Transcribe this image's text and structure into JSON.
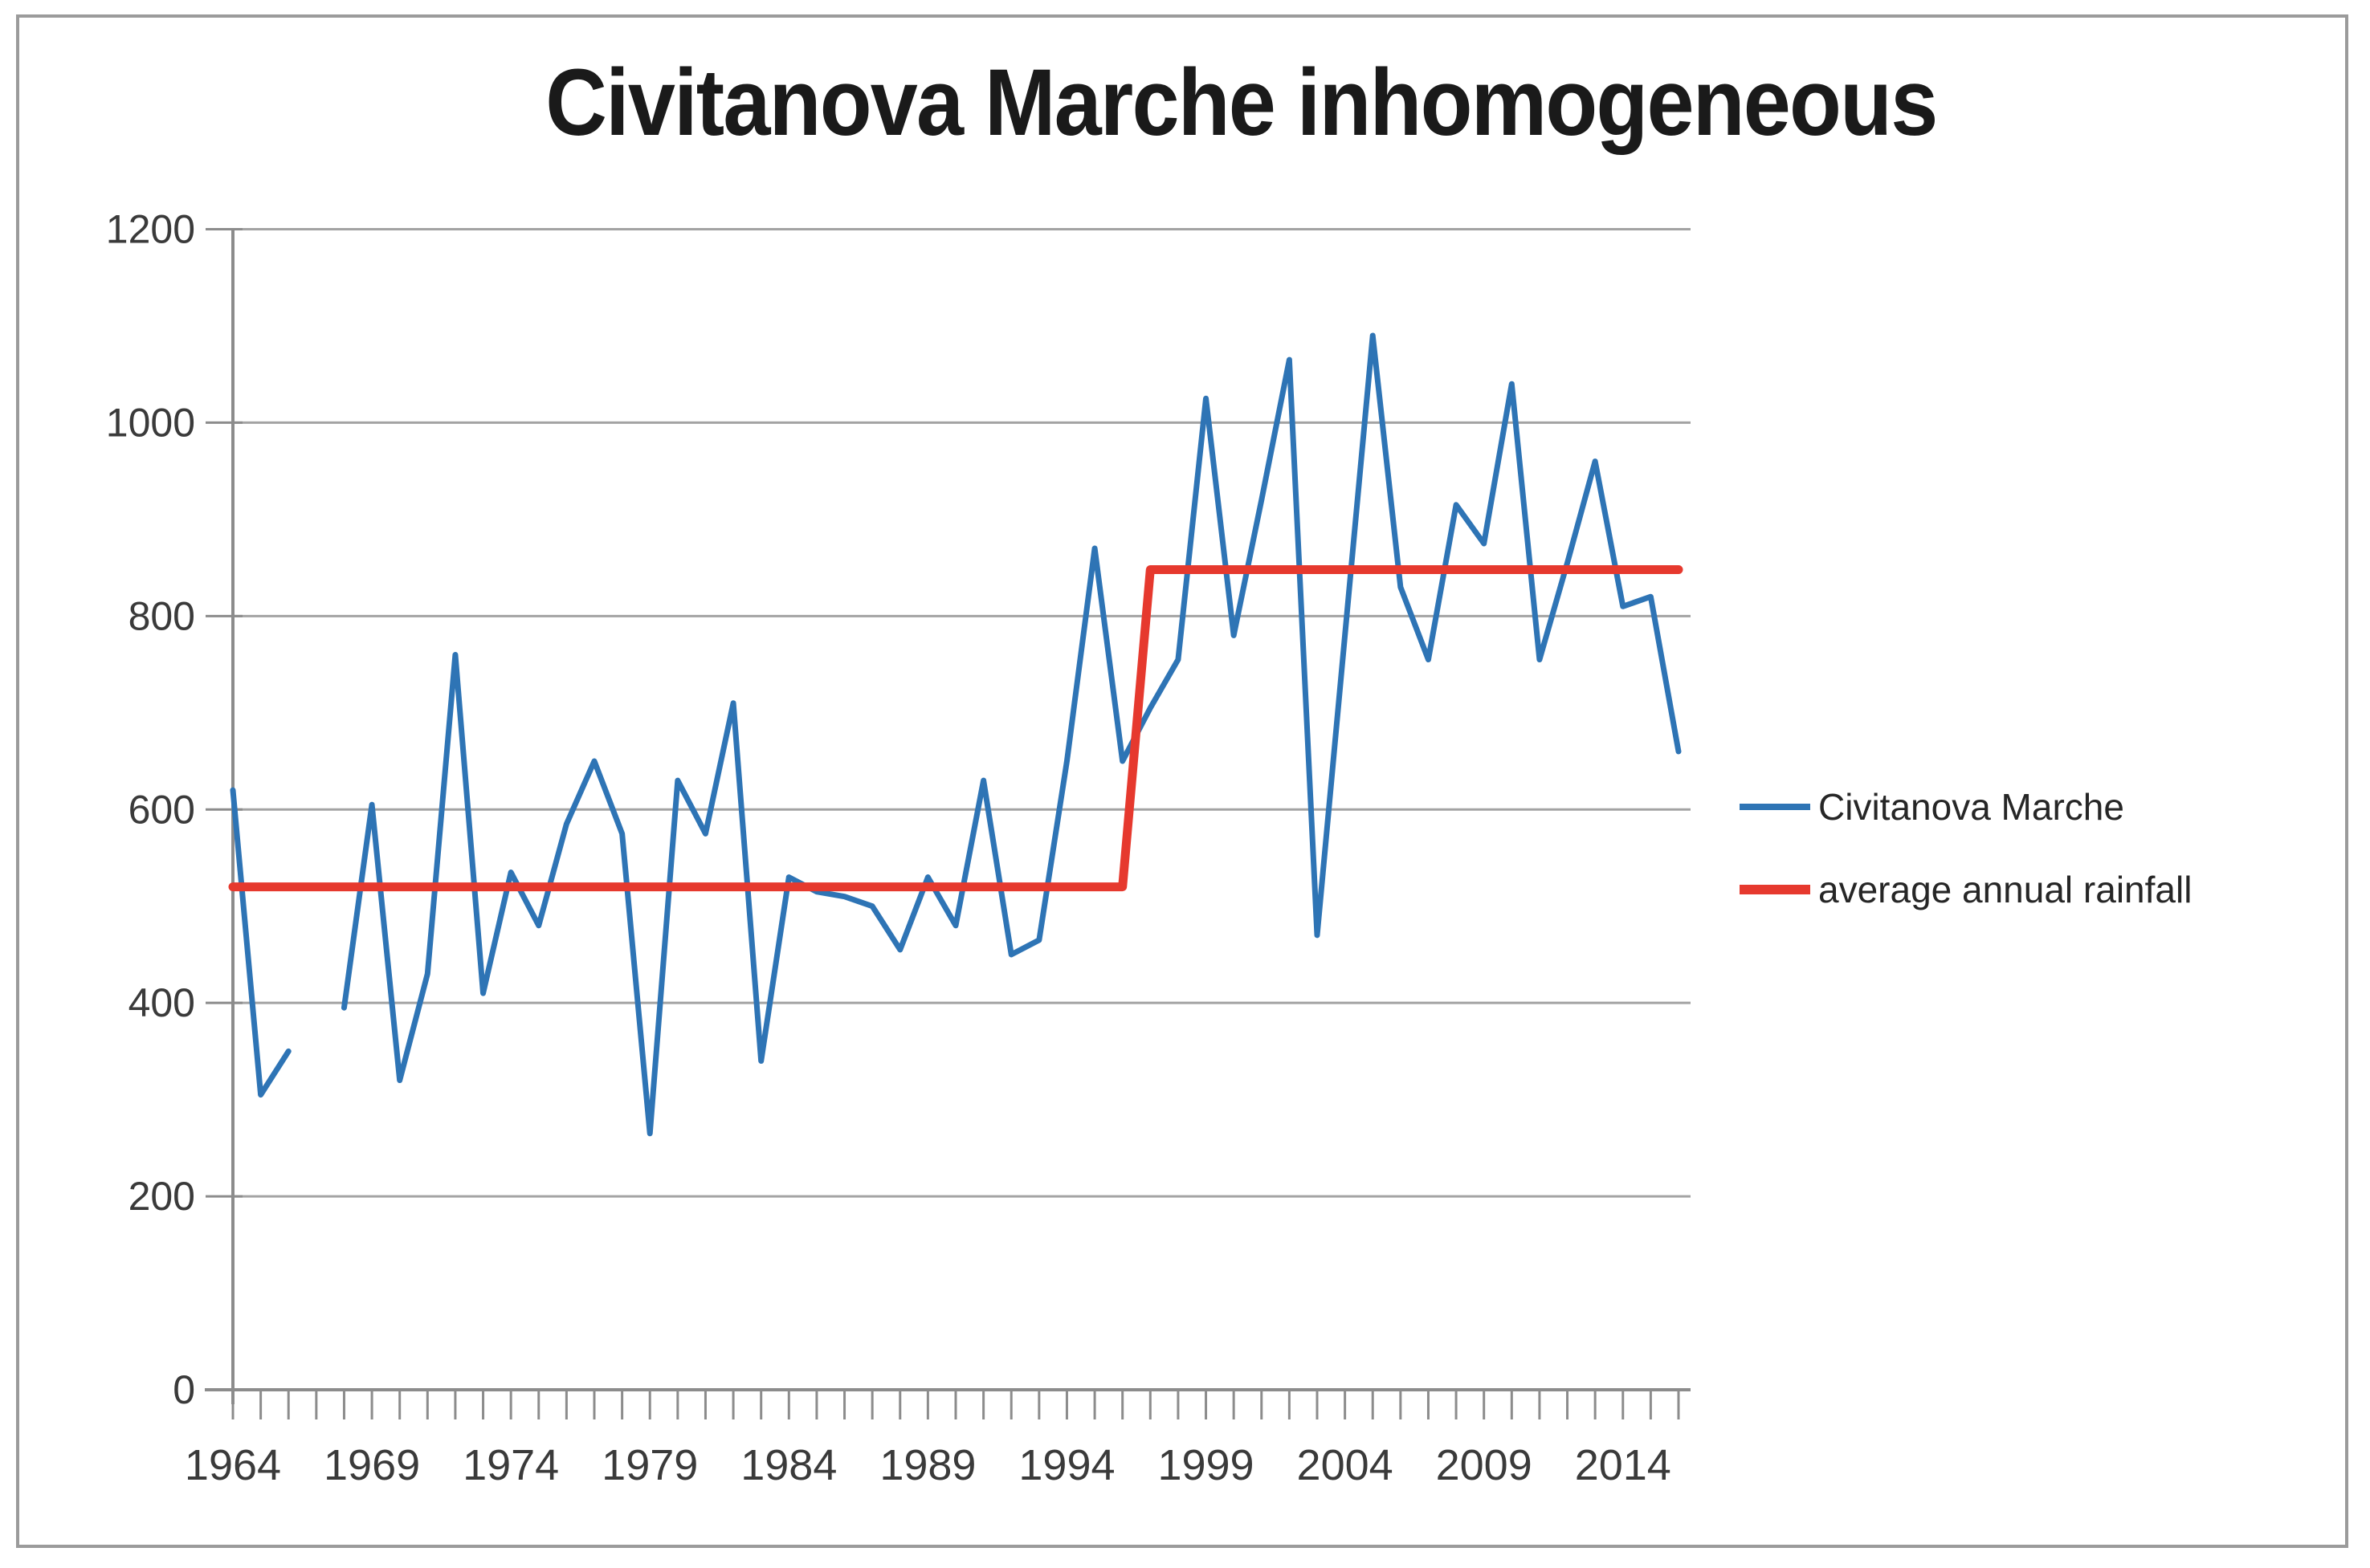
{
  "chart_data": {
    "type": "line",
    "title": "Civitanova Marche inhomogeneous",
    "x": [
      1964,
      1965,
      1966,
      1967,
      1968,
      1969,
      1970,
      1971,
      1972,
      1973,
      1974,
      1975,
      1976,
      1977,
      1978,
      1979,
      1980,
      1981,
      1982,
      1983,
      1984,
      1985,
      1986,
      1987,
      1988,
      1989,
      1990,
      1991,
      1992,
      1993,
      1994,
      1995,
      1996,
      1997,
      1998,
      1999,
      2000,
      2001,
      2002,
      2003,
      2004,
      2005,
      2006,
      2007,
      2008,
      2009,
      2010,
      2011,
      2012,
      2013,
      2014,
      2015,
      2016
    ],
    "series": [
      {
        "name": "Civitanova Marche",
        "color": "#2E74B5",
        "values": [
          620,
          305,
          350,
          null,
          395,
          605,
          320,
          430,
          760,
          410,
          535,
          480,
          585,
          650,
          575,
          265,
          630,
          575,
          710,
          340,
          530,
          515,
          510,
          500,
          455,
          530,
          480,
          630,
          450,
          465,
          650,
          870,
          650,
          705,
          755,
          1025,
          780,
          920,
          1065,
          470,
          780,
          1090,
          830,
          755,
          915,
          875,
          1040,
          755,
          855,
          960,
          810,
          820,
          660
        ]
      },
      {
        "name": "average annual rainfall",
        "color": "#E6392E",
        "values": [
          520,
          520,
          520,
          520,
          520,
          520,
          520,
          520,
          520,
          520,
          520,
          520,
          520,
          520,
          520,
          520,
          520,
          520,
          520,
          520,
          520,
          520,
          520,
          520,
          520,
          520,
          520,
          520,
          520,
          520,
          520,
          520,
          520,
          848,
          848,
          848,
          848,
          848,
          848,
          848,
          848,
          848,
          848,
          848,
          848,
          848,
          848,
          848,
          848,
          848,
          848,
          848,
          848
        ]
      }
    ],
    "ylim": [
      0,
      1200
    ],
    "y_ticks": [
      "0",
      "200",
      "400",
      "600",
      "800",
      "1000",
      "1200"
    ],
    "x_tick_labels": [
      "1964",
      "1969",
      "1974",
      "1979",
      "1984",
      "1989",
      "1994",
      "1999",
      "2004",
      "2009",
      "2014"
    ],
    "grid": "horizontal",
    "legend_position": "right",
    "colors": {
      "gridline": "#a3a3a3",
      "axis": "#8c8c8c",
      "tick_label": "#3a3a3a",
      "title": "#1a1a1a",
      "legend_text": "#262626",
      "frame": "#9b9b9b"
    }
  }
}
